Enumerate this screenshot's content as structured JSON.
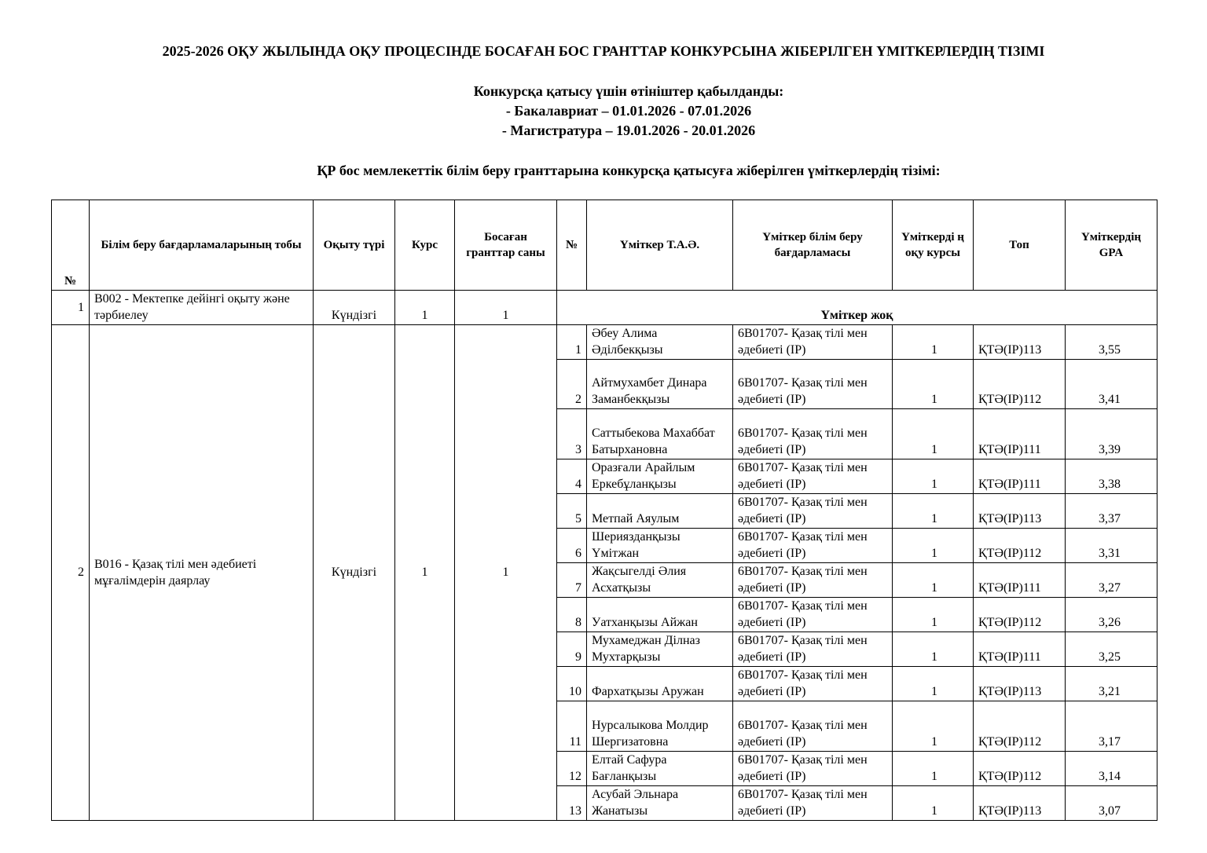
{
  "header": {
    "title": "2025-2026 ОҚУ ЖЫЛЫНДА ОҚУ ПРОЦЕСІНДЕ БОСАҒАН БОС ГРАНТТАР КОНКУРСЫНА ЖІБЕРІЛГЕН ҮМІТКЕРЛЕРДІҢ ТІЗІМІ",
    "lines": [
      "Конкурсқа қатысу үшін өтініштер қабылданды:",
      "- Бакалавриат – 01.01.2026 - 07.01.2026",
      "- Магистратура – 19.01.2026 - 20.01.2026"
    ],
    "subtitle": "ҚР бос мемлекеттік білім беру гранттарына конкурсқа қатысуға жіберілген үміткерлердің тізімі:"
  },
  "table": {
    "columns": [
      "№",
      "Білім беру бағдарламаларының тобы",
      "Оқыту түрі",
      "Курс",
      "Босаған гранттар саны",
      "№",
      "Үміткер Т.А.Ә.",
      "Үміткер білім беру бағдарламасы",
      "Үміткерді ң оқу курсы",
      "Топ",
      "Үміткердің GPA"
    ],
    "groups": [
      {
        "no": "1",
        "program": "В002 - Мектепке дейінгі оқыту және тәрбиелеу",
        "form": "Күндізгі",
        "course": "1",
        "grants": "1",
        "note": "Үміткер жоқ"
      },
      {
        "no": "2",
        "program": "В016 - Қазақ тілі мен әдебиеті мұғалімдерін даярлау",
        "form": "Күндізгі",
        "course": "1",
        "grants": "1",
        "candidates": [
          [
            "1",
            "Әбеу Алима Әділбекқызы",
            "6В01707- Қазақ тілі мен әдебиеті (ІР)",
            "1",
            "ҚТӘ(ІР)113",
            "3,55"
          ],
          [
            "2",
            "Айтмухамбет Динара Заманбекқызы",
            "6В01707- Қазақ тілі мен әдебиеті (ІР)",
            "1",
            "ҚТӘ(ІР)112",
            "3,41"
          ],
          [
            "3",
            "Саттыбекова Махаббат Батырхановна",
            "6В01707- Қазақ тілі мен әдебиеті (ІР)",
            "1",
            "ҚТӘ(ІР)111",
            "3,39"
          ],
          [
            "4",
            "Оразғали Арайлым Еркебұланқызы",
            "6В01707- Қазақ тілі мен әдебиеті (ІР)",
            "1",
            "ҚТӘ(ІР)111",
            "3,38"
          ],
          [
            "5",
            "Метпай Аяулым",
            "6В01707- Қазақ тілі мен әдебиеті (ІР)",
            "1",
            "ҚТӘ(ІР)113",
            "3,37"
          ],
          [
            "6",
            "Шериязданқызы Үмітжан",
            "6В01707- Қазақ тілі мен әдебиеті (ІР)",
            "1",
            "ҚТӘ(ІР)112",
            "3,31"
          ],
          [
            "7",
            "Жақсыгелді Әлия Асхатқызы",
            "6В01707- Қазақ тілі мен әдебиеті (ІР)",
            "1",
            "ҚТӘ(ІР)111",
            "3,27"
          ],
          [
            "8",
            "Уатханқызы Айжан",
            "6В01707- Қазақ тілі мен әдебиеті (ІР)",
            "1",
            "ҚТӘ(ІР)112",
            "3,26"
          ],
          [
            "9",
            "Мухамеджан Ділназ Мухтарқызы",
            "6В01707- Қазақ тілі мен әдебиеті (ІР)",
            "1",
            "ҚТӘ(ІР)111",
            "3,25"
          ],
          [
            "10",
            "Фархатқызы Аружан",
            "6В01707- Қазақ тілі мен әдебиеті (ІР)",
            "1",
            "ҚТӘ(ІР)113",
            "3,21"
          ],
          [
            "11",
            "Нурсалыкова Молдир Шергизатовна",
            "6В01707- Қазақ тілі мен әдебиеті (ІР)",
            "1",
            "ҚТӘ(ІР)112",
            "3,17"
          ],
          [
            "12",
            "Елтай Сафура Бағланқызы",
            "6В01707- Қазақ тілі мен әдебиеті (ІР)",
            "1",
            "ҚТӘ(ІР)112",
            "3,14"
          ],
          [
            "13",
            "Асубай Эльнара Жанатызы",
            "6В01707- Қазақ тілі мен әдебиеті (ІР)",
            "1",
            "ҚТӘ(ІР)113",
            "3,07"
          ]
        ]
      }
    ]
  }
}
